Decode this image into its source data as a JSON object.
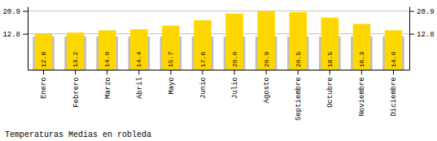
{
  "chart_data": {
    "type": "bar",
    "title": "Temperaturas Medias en robleda",
    "categories": [
      "Enero",
      "Febrero",
      "Marzo",
      "Abril",
      "Mayo",
      "Junio",
      "Julio",
      "Agosto",
      "Septiembre",
      "Octubre",
      "Noviembre",
      "Diciembre"
    ],
    "series": [
      {
        "color": "#BEBEBE",
        "values": [
          11.8,
          11.8,
          11.8,
          11.8,
          11.8,
          11.8,
          11.8,
          11.8,
          11.8,
          11.8,
          11.8,
          11.8
        ]
      },
      {
        "color": "#FFD700",
        "values": [
          12.8,
          13.2,
          14.0,
          14.4,
          15.7,
          17.6,
          20.0,
          20.9,
          20.5,
          18.5,
          16.3,
          14.0
        ],
        "value_labels": [
          "12.8",
          "13.2",
          "14.0",
          "14.4",
          "15.7",
          "17.6",
          "20.0",
          "20.9",
          "20.5",
          "18.5",
          "16.3",
          "14.0"
        ],
        "data_labels": true
      }
    ],
    "ylim": [
      0.0,
      22.5
    ],
    "yticks": [
      12.8,
      20.9
    ],
    "grid": true
  }
}
